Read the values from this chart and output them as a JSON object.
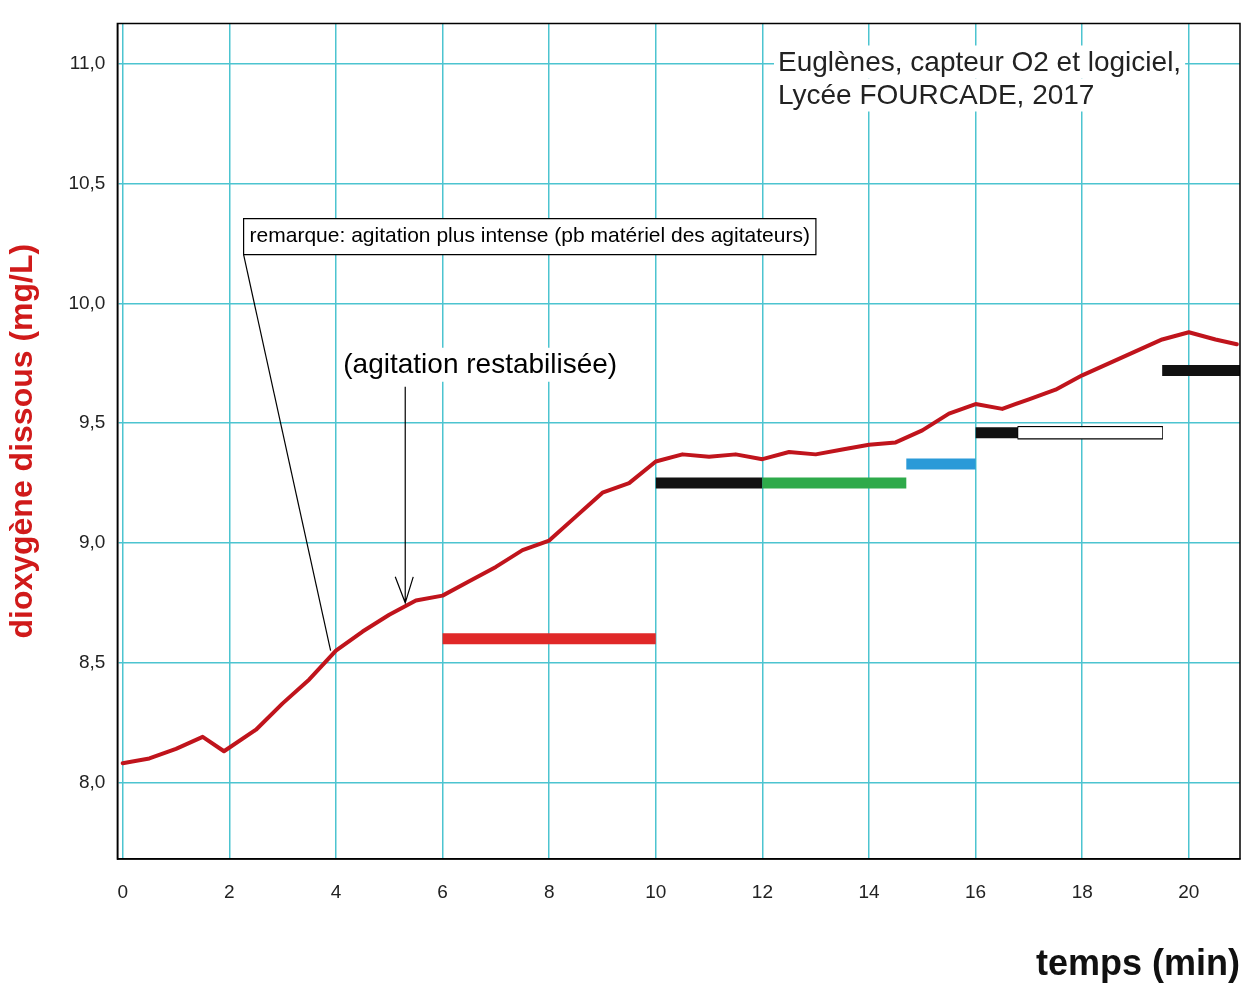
{
  "chart_data": {
    "type": "line",
    "xlabel": "temps (min)",
    "ylabel": "dioxygène dissous (mg/L)",
    "xlim": [
      -0.1,
      20.96
    ],
    "ylim": [
      7.68,
      11.17
    ],
    "xticks": [
      0,
      2,
      4,
      6,
      8,
      10,
      12,
      14,
      16,
      18,
      20
    ],
    "yticks": [
      {
        "value": 8,
        "label": "8,0"
      },
      {
        "value": 8.5,
        "label": "8,5"
      },
      {
        "value": 9,
        "label": "9,0"
      },
      {
        "value": 9.5,
        "label": "9,5"
      },
      {
        "value": 10,
        "label": "10,0"
      },
      {
        "value": 10.5,
        "label": "10,5"
      },
      {
        "value": 11,
        "label": "11,0"
      }
    ],
    "grid": true,
    "legend": false,
    "marker": "none",
    "line_style": "solid",
    "series": [
      {
        "color": "#c0141c",
        "x": [
          0,
          0.5,
          1,
          1.5,
          1.9,
          2.5,
          3,
          3.5,
          4,
          4.5,
          5,
          5.5,
          6,
          6.5,
          7,
          7.5,
          8,
          8.5,
          9,
          9.5,
          10,
          10.5,
          11,
          11.5,
          12,
          12.5,
          13,
          13.5,
          14,
          14.5,
          15,
          15.5,
          16,
          16.5,
          17,
          17.5,
          18,
          18.5,
          19,
          19.5,
          20,
          20.5,
          20.9
        ],
        "values": [
          8.08,
          8.1,
          8.14,
          8.19,
          8.13,
          8.22,
          8.33,
          8.43,
          8.55,
          8.63,
          8.7,
          8.76,
          8.78,
          8.84,
          8.9,
          8.97,
          9.01,
          9.11,
          9.21,
          9.25,
          9.34,
          9.37,
          9.36,
          9.37,
          9.35,
          9.38,
          9.37,
          9.39,
          9.41,
          9.42,
          9.47,
          9.54,
          9.58,
          9.56,
          9.6,
          9.64,
          9.7,
          9.75,
          9.8,
          9.85,
          9.88,
          9.85,
          9.83
        ]
      },
      {
        "color": "#e02828",
        "x": [
          6,
          10
        ],
        "values": [
          8.6,
          8.6
        ]
      },
      {
        "color": "#111111",
        "x": [
          10,
          12
        ],
        "values": [
          9.25,
          9.25
        ]
      },
      {
        "color": "#2eaa4a",
        "x": [
          12,
          14.7
        ],
        "values": [
          9.25,
          9.25
        ]
      },
      {
        "color": "#2a9ad8",
        "x": [
          14.7,
          16
        ],
        "values": [
          9.33,
          9.33
        ]
      },
      {
        "color": "#111111",
        "x": [
          16,
          16.8
        ],
        "values": [
          9.46,
          9.46
        ]
      },
      {
        "color": "#ffffff",
        "x": [
          16.8,
          19.5
        ],
        "values": [
          9.46,
          9.46
        ]
      },
      {
        "color": "#111111",
        "x": [
          19.5,
          20.96
        ],
        "values": [
          9.72,
          9.72
        ]
      }
    ],
    "annotations": [
      "Euglènes, capteur O2 et logiciel, Lycée FOURCADE, 2017",
      {
        "text": "remarque: agitation plus intense (pb matériel des agitateurs)",
        "x": 3.9,
        "y": 8.55
      },
      {
        "text": "(agitation restabilisée)",
        "x": 5.3,
        "y": 8.75
      }
    ]
  }
}
